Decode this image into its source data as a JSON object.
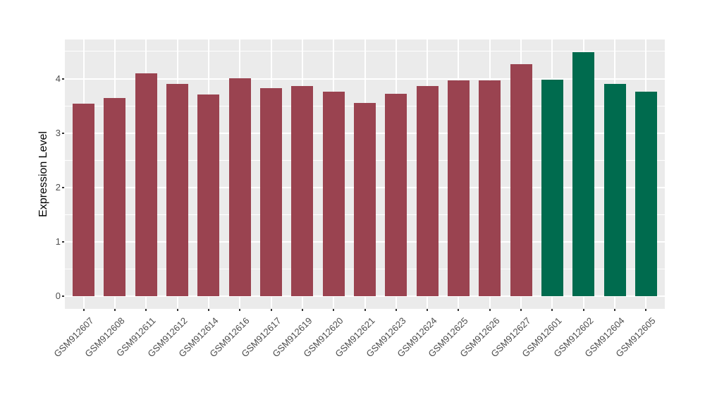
{
  "chart_data": {
    "type": "bar",
    "title": "",
    "xlabel": "",
    "ylabel": "Expression Level",
    "categories": [
      "GSM912607",
      "GSM912608",
      "GSM912611",
      "GSM912612",
      "GSM912614",
      "GSM912616",
      "GSM912617",
      "GSM912619",
      "GSM912620",
      "GSM912621",
      "GSM912623",
      "GSM912624",
      "GSM912625",
      "GSM912626",
      "GSM912627",
      "GSM912601",
      "GSM912602",
      "GSM912604",
      "GSM912605"
    ],
    "values": [
      3.54,
      3.64,
      4.1,
      3.9,
      3.71,
      4.01,
      3.82,
      3.87,
      3.76,
      3.55,
      3.72,
      3.87,
      3.97,
      3.97,
      4.26,
      3.98,
      4.49,
      3.9,
      3.76
    ],
    "bar_groups": [
      "maroon",
      "maroon",
      "maroon",
      "maroon",
      "maroon",
      "maroon",
      "maroon",
      "maroon",
      "maroon",
      "maroon",
      "maroon",
      "maroon",
      "maroon",
      "maroon",
      "maroon",
      "green",
      "green",
      "green",
      "green"
    ],
    "group_colors": {
      "maroon": "#9A4350",
      "green": "#006B4E"
    },
    "yticks": [
      0,
      1,
      2,
      3,
      4
    ],
    "ytick_labels": [
      "0",
      "1",
      "2",
      "3",
      "4"
    ],
    "ylim": [
      -0.23,
      4.72
    ],
    "grid": "on",
    "legend": "none",
    "panel_bg": "#EBEBEB",
    "gridline_color": "#FFFFFF",
    "tick_label_color": "#4D4D4D",
    "tick_mark_color": "#333333",
    "axis_title_color": "#000000",
    "x_label_rotation_deg": 45
  }
}
